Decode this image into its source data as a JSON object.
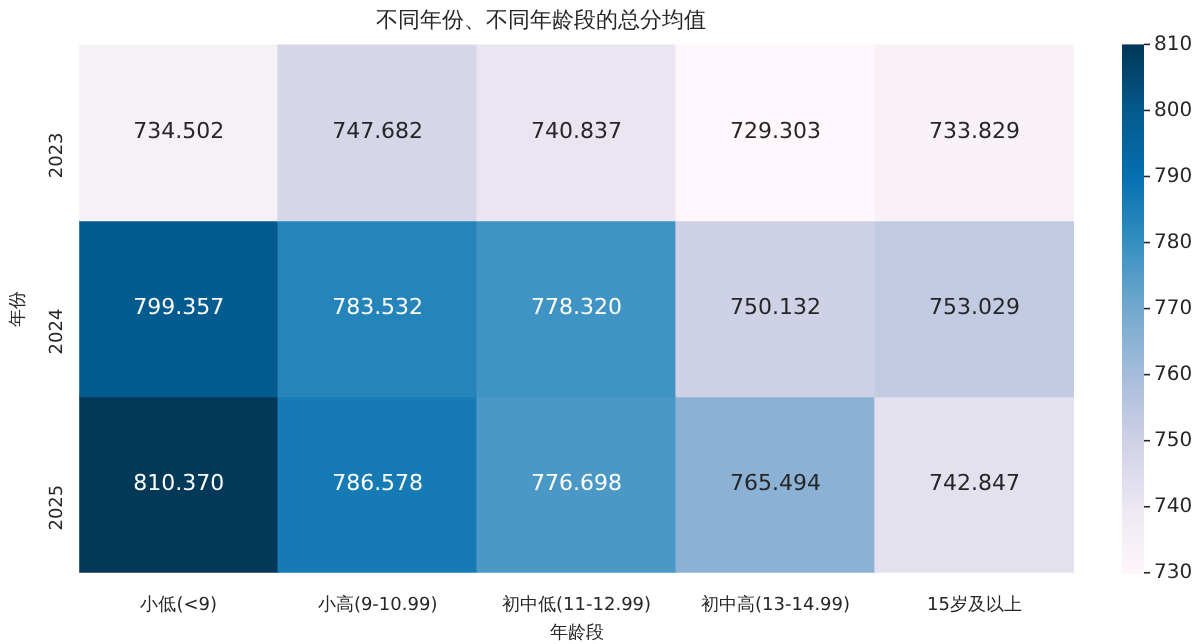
{
  "chart_data": {
    "type": "heatmap",
    "title": "不同年份、不同年龄段的总分均值",
    "xlabel": "年龄段",
    "ylabel": "年份",
    "categories": [
      "小低(<9)",
      "小高(9-10.99)",
      "初中低(11-12.99)",
      "初中高(13-14.99)",
      "15岁及以上"
    ],
    "y_categories": [
      "2023",
      "2024",
      "2025"
    ],
    "cells": [
      [
        734.502,
        747.682,
        740.837,
        729.303,
        733.829
      ],
      [
        799.357,
        783.532,
        778.32,
        750.132,
        753.029
      ],
      [
        810.37,
        786.578,
        776.698,
        765.494,
        742.847
      ]
    ],
    "cell_labels": [
      [
        "734.502",
        "747.682",
        "740.837",
        "729.303",
        "733.829"
      ],
      [
        "799.357",
        "783.532",
        "778.320",
        "750.132",
        "753.029"
      ],
      [
        "810.370",
        "786.578",
        "776.698",
        "765.494",
        "742.847"
      ]
    ],
    "clim": [
      730,
      810
    ],
    "cticks": [
      730,
      740,
      750,
      760,
      770,
      780,
      790,
      800,
      810
    ],
    "data_labels": true
  }
}
